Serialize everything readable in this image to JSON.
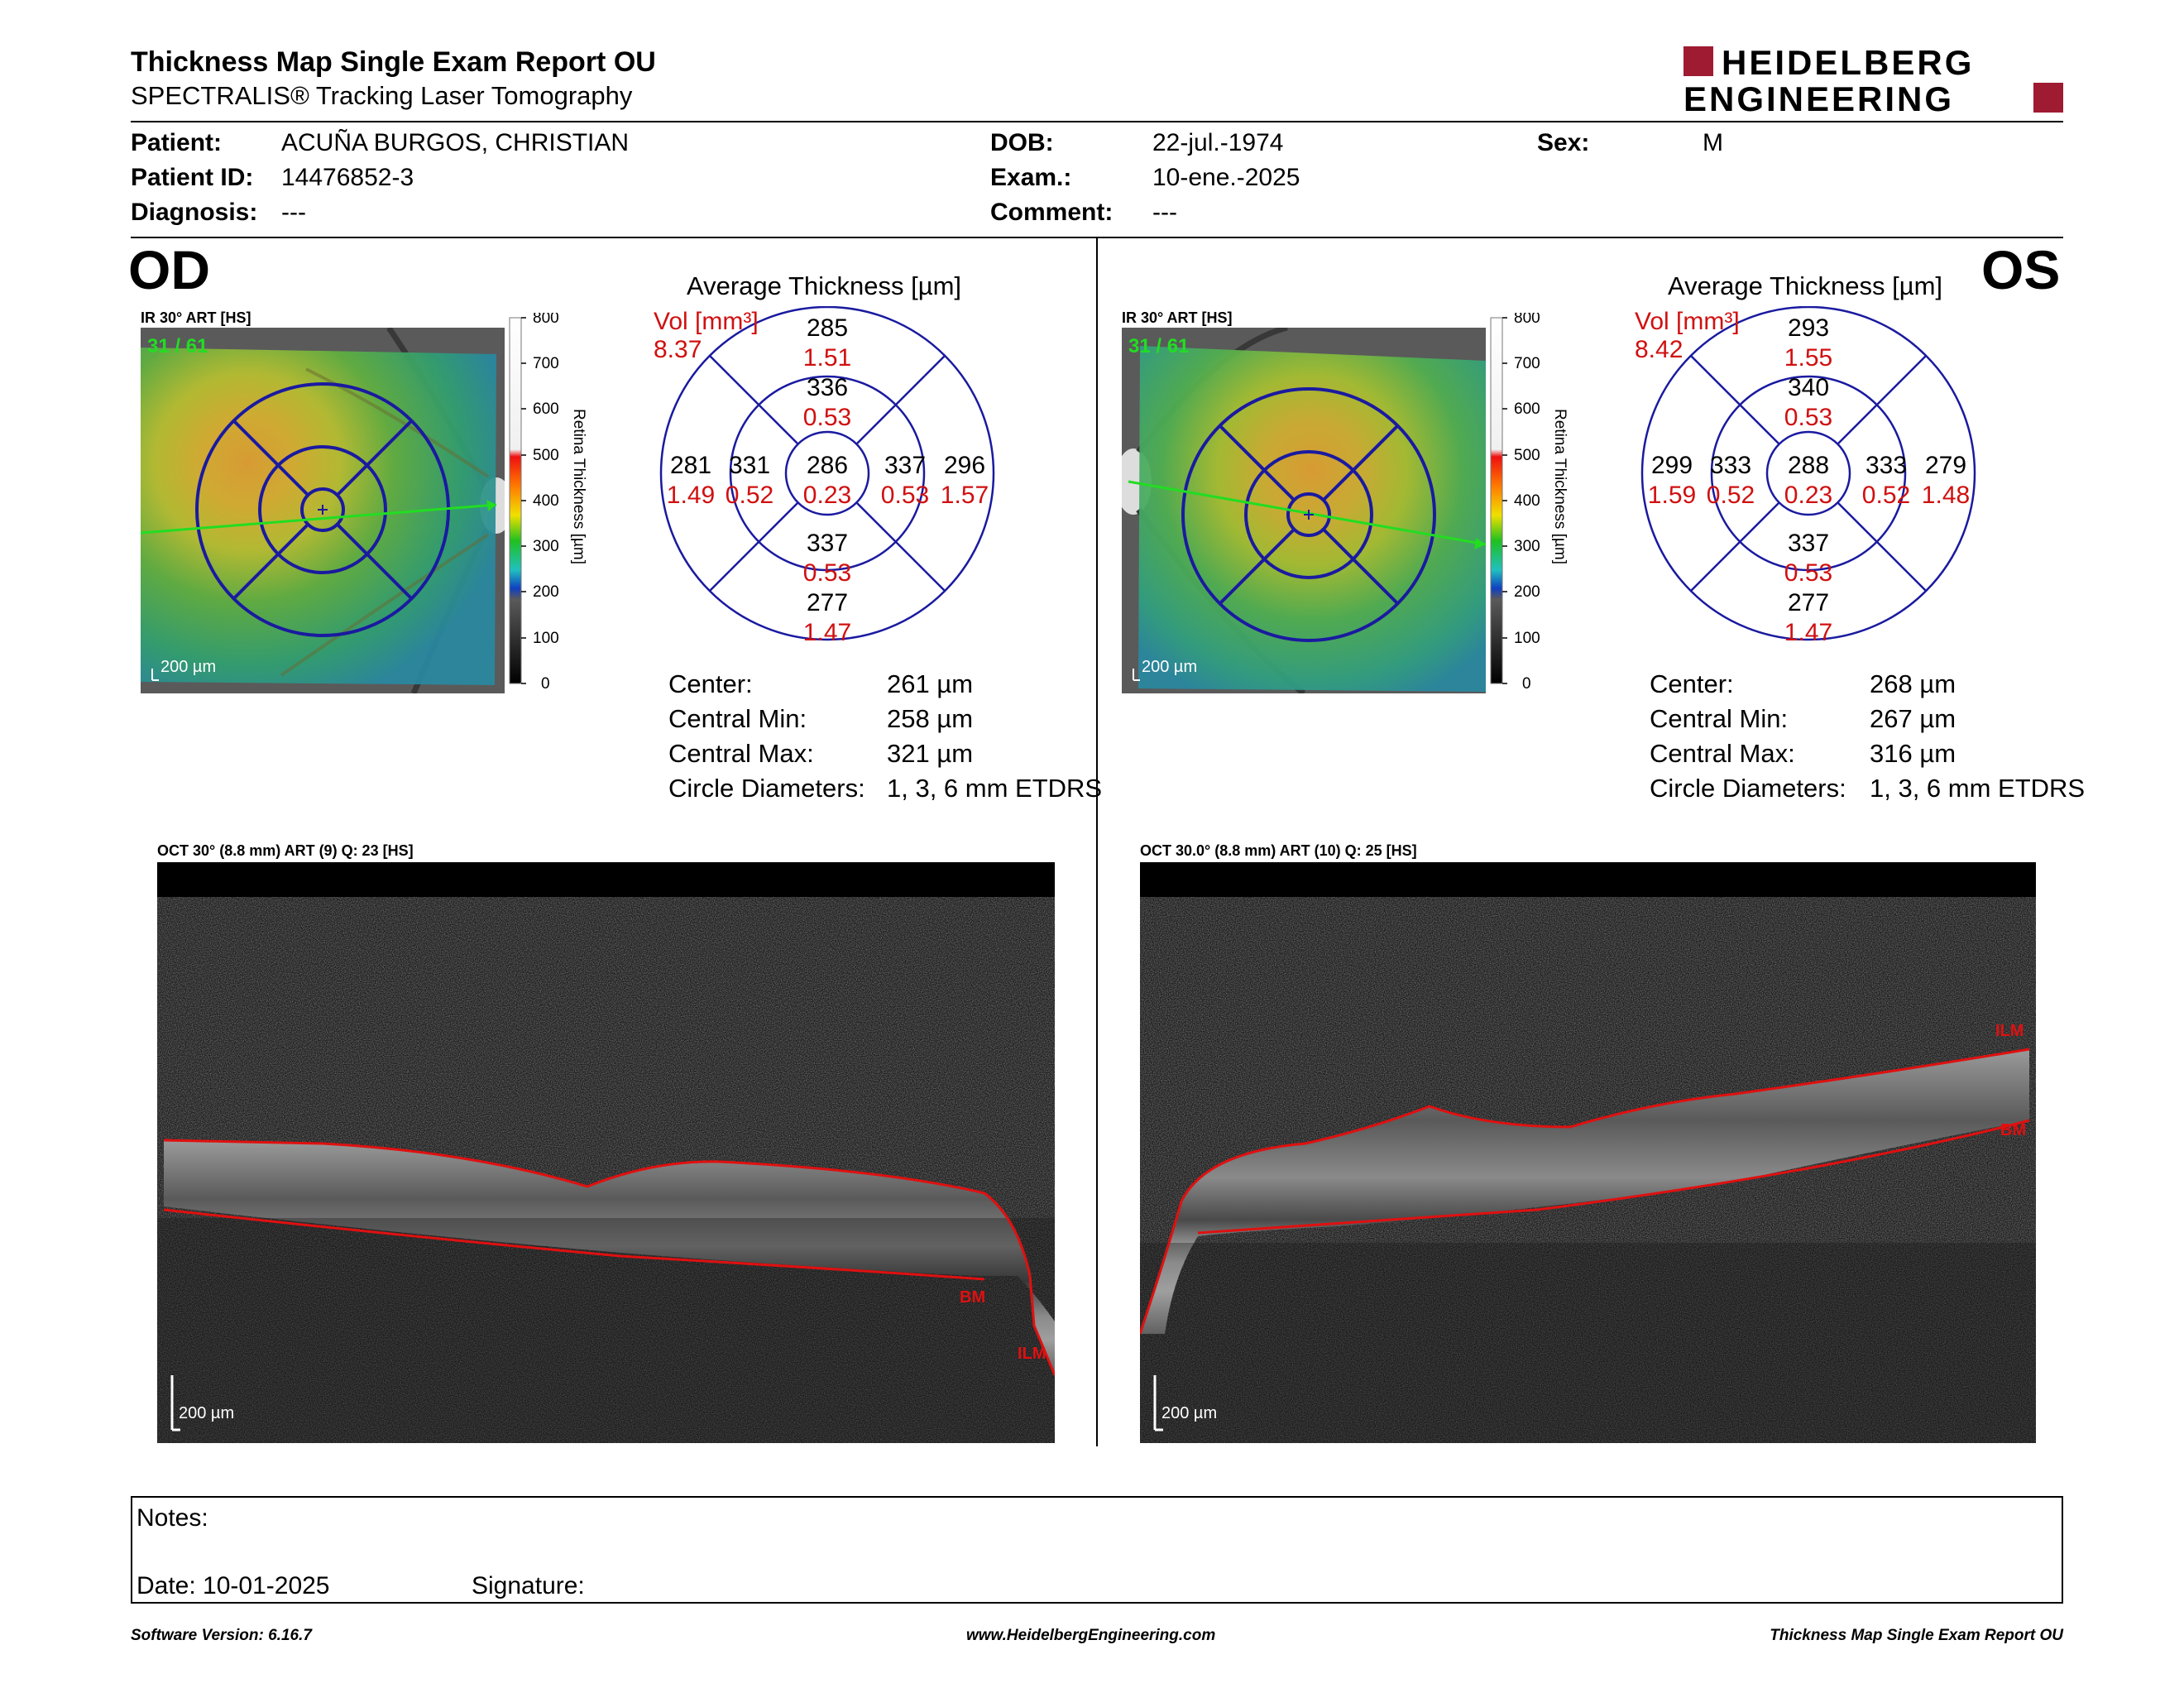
{
  "header": {
    "title": "Thickness Map Single Exam Report OU",
    "subtitle": "SPECTRALIS® Tracking Laser Tomography",
    "logo_line1": "HEIDELBERG",
    "logo_line2": "ENGINEERING"
  },
  "patient": {
    "patient_label": "Patient:",
    "patient_value": "ACUÑA BURGOS, CHRISTIAN",
    "id_label": "Patient ID:",
    "id_value": "14476852-3",
    "diagnosis_label": "Diagnosis:",
    "diagnosis_value": "---",
    "dob_label": "DOB:",
    "dob_value": "22-jul.-1974",
    "exam_label": "Exam.:",
    "exam_value": "10-ene.-2025",
    "comment_label": "Comment:",
    "comment_value": "---",
    "sex_label": "Sex:",
    "sex_value": "M"
  },
  "colorbar": {
    "ticks": [
      "800",
      "700",
      "600",
      "500",
      "400",
      "300",
      "200",
      "100",
      "0"
    ],
    "label": "Retina  Thickness [µm]"
  },
  "od": {
    "eye_label": "OD",
    "ir_label": "IR 30° ART [HS]",
    "frame": "31 / 61",
    "scale": "200 µm",
    "avg_title": "Average Thickness [µm]",
    "vol_label": "Vol [mm³]",
    "vol_total": "8.37",
    "sectors": {
      "sup_outer": {
        "t": "285",
        "v": "1.51"
      },
      "sup_inner": {
        "t": "336",
        "v": "0.53"
      },
      "nas_outer": {
        "t": "281",
        "v": "1.49"
      },
      "nas_inner": {
        "t": "331",
        "v": "0.52"
      },
      "center": {
        "t": "286",
        "v": "0.23"
      },
      "tem_inner": {
        "t": "337",
        "v": "0.53"
      },
      "tem_outer": {
        "t": "296",
        "v": "1.57"
      },
      "inf_inner": {
        "t": "337",
        "v": "0.53"
      },
      "inf_outer": {
        "t": "277",
        "v": "1.47"
      }
    },
    "stats": {
      "center_label": "Center:",
      "center_value": "261 µm",
      "min_label": "Central Min:",
      "min_value": "258 µm",
      "max_label": "Central Max:",
      "max_value": "321 µm",
      "diam_label": "Circle Diameters:",
      "diam_value": "1, 3, 6 mm ETDRS"
    },
    "oct_label": "OCT 30° (8.8 mm) ART (9) Q: 23 [HS]",
    "oct_scale": "200 µm",
    "ilm_label": "ILM",
    "bm_label": "BM"
  },
  "os": {
    "eye_label": "OS",
    "ir_label": "IR 30° ART [HS]",
    "frame": "31 / 61",
    "scale": "200 µm",
    "avg_title": "Average Thickness [µm]",
    "vol_label": "Vol [mm³]",
    "vol_total": "8.42",
    "sectors": {
      "sup_outer": {
        "t": "293",
        "v": "1.55"
      },
      "sup_inner": {
        "t": "340",
        "v": "0.53"
      },
      "nas_outer": {
        "t": "299",
        "v": "1.59"
      },
      "nas_inner": {
        "t": "333",
        "v": "0.52"
      },
      "center": {
        "t": "288",
        "v": "0.23"
      },
      "tem_inner": {
        "t": "333",
        "v": "0.52"
      },
      "tem_outer": {
        "t": "279",
        "v": "1.48"
      },
      "inf_inner": {
        "t": "337",
        "v": "0.53"
      },
      "inf_outer": {
        "t": "277",
        "v": "1.47"
      }
    },
    "stats": {
      "center_label": "Center:",
      "center_value": "268 µm",
      "min_label": "Central Min:",
      "min_value": "267 µm",
      "max_label": "Central Max:",
      "max_value": "316 µm",
      "diam_label": "Circle Diameters:",
      "diam_value": "1, 3, 6 mm ETDRS"
    },
    "oct_label": "OCT 30.0° (8.8 mm) ART (10) Q: 25 [HS]",
    "oct_scale": "200 µm",
    "ilm_label": "ILM",
    "bm_label": "BM"
  },
  "notes": {
    "notes_label": "Notes:",
    "date_label": "Date: 10-01-2025",
    "signature_label": "Signature:"
  },
  "footer": {
    "software": "Software Version: 6.16.7",
    "website": "www.HeidelbergEngineering.com",
    "report": "Thickness Map Single Exam Report OU"
  },
  "colors": {
    "brand": "#9e1b32",
    "etdrs_grid": "#1a1aa0",
    "volume_red": "#d01010",
    "segmentation_red": "#e01010",
    "frame_green": "#22dd22"
  }
}
